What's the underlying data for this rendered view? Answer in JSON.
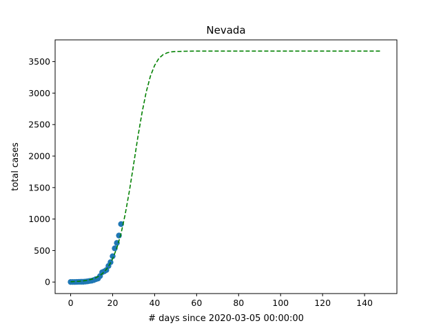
{
  "chart_data": {
    "type": "scatter",
    "title": "Nevada",
    "xlabel": "# days since 2020-03-05 00:00:00",
    "ylabel": "total cases",
    "xlim": [
      -7.4,
      155.4
    ],
    "ylim": [
      -183,
      3845
    ],
    "xticks": [
      0,
      20,
      40,
      60,
      80,
      100,
      120,
      140
    ],
    "yticks": [
      0,
      500,
      1000,
      1500,
      2000,
      2500,
      3000,
      3500
    ],
    "grid": false,
    "series": [
      {
        "kind": "points",
        "color": "#1f77b4",
        "x": [
          0,
          1,
          2,
          3,
          4,
          5,
          6,
          7,
          8,
          9,
          10,
          11,
          12,
          13,
          14,
          15,
          16,
          17,
          18,
          19,
          20,
          21,
          22,
          23,
          24
        ],
        "y": [
          1,
          1,
          1,
          2,
          3,
          4,
          4,
          7,
          11,
          17,
          21,
          31,
          45,
          55,
          95,
          155,
          170,
          190,
          255,
          315,
          410,
          535,
          621,
          738,
          920
        ]
      },
      {
        "kind": "fit",
        "style": "dashed",
        "color": "#008000",
        "x": [
          0,
          2,
          4,
          6,
          8,
          10,
          12,
          14,
          16,
          18,
          20,
          22,
          24,
          26,
          28,
          30,
          32,
          34,
          36,
          38,
          40,
          42,
          44,
          46,
          48,
          50,
          55,
          60,
          70,
          80,
          100,
          120,
          148
        ],
        "y": [
          5,
          8,
          12,
          18,
          28,
          44,
          68,
          105,
          160,
          245,
          370,
          540,
          770,
          1080,
          1450,
          1870,
          2300,
          2690,
          3020,
          3270,
          3440,
          3550,
          3610,
          3640,
          3655,
          3660,
          3665,
          3667,
          3667,
          3667,
          3667,
          3667,
          3667
        ]
      }
    ]
  }
}
